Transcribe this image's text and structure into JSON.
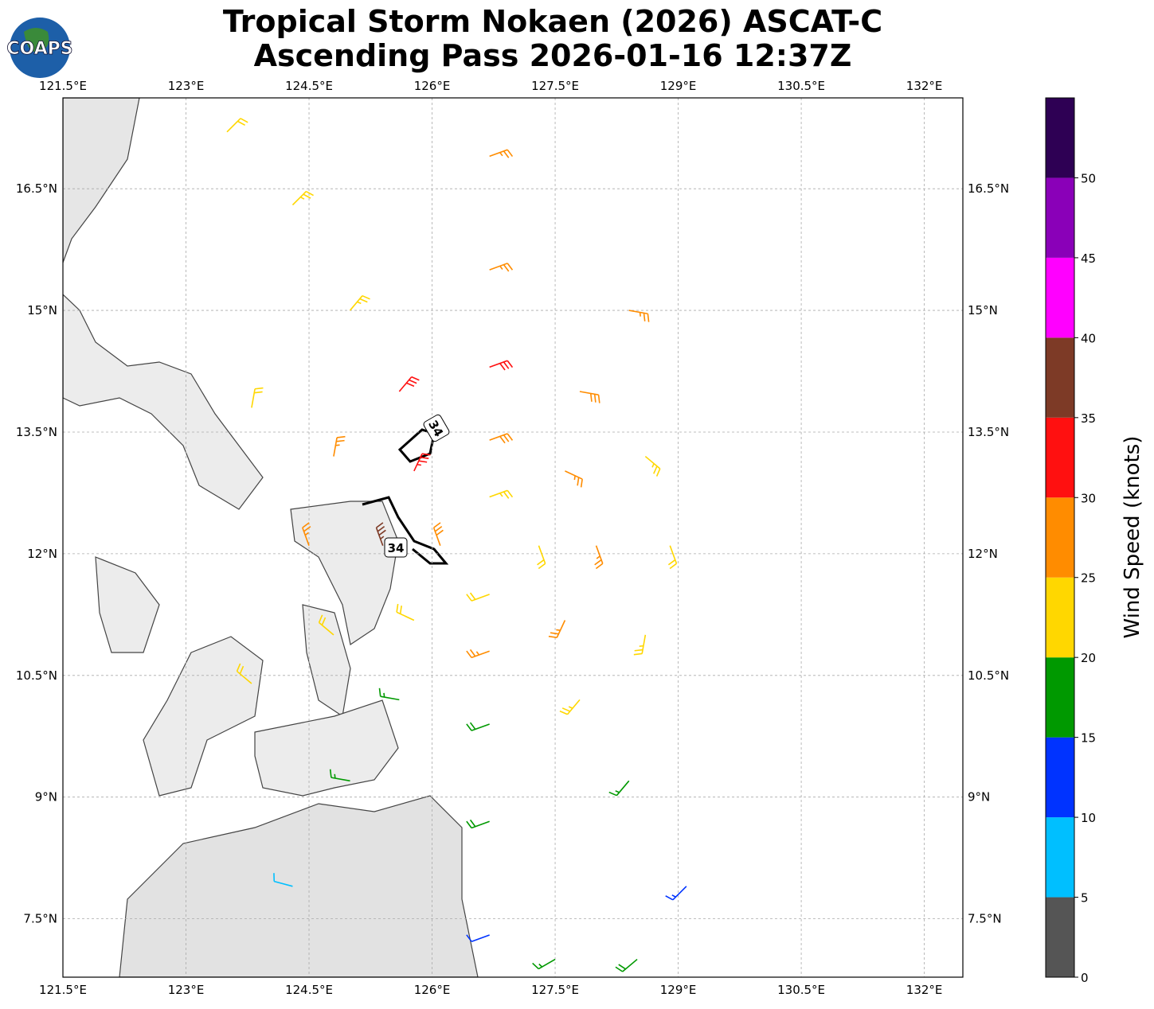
{
  "logo": "COAPS",
  "title": "Tropical Storm Nokaen (2026) ASCAT-C",
  "subtitle": "Ascending Pass 2026-01-16 12:37Z",
  "map": {
    "xlim": [
      121.5,
      132.47
    ],
    "ylim": [
      6.78,
      17.62
    ],
    "xticks": [
      {
        "value": 121.5,
        "label": "121.5°E"
      },
      {
        "value": 123,
        "label": "123°E"
      },
      {
        "value": 124.5,
        "label": "124.5°E"
      },
      {
        "value": 126,
        "label": "126°E"
      },
      {
        "value": 127.5,
        "label": "127.5°E"
      },
      {
        "value": 129,
        "label": "129°E"
      },
      {
        "value": 130.5,
        "label": "130.5°E"
      },
      {
        "value": 132,
        "label": "132°E"
      }
    ],
    "yticks": [
      {
        "value": 7.5,
        "label": "7.5°N"
      },
      {
        "value": 9,
        "label": "9°N"
      },
      {
        "value": 10.5,
        "label": "10.5°N"
      },
      {
        "value": 12,
        "label": "12°N"
      },
      {
        "value": 13.5,
        "label": "13.5°N"
      },
      {
        "value": 15,
        "label": "15°N"
      },
      {
        "value": 16.5,
        "label": "16.5°N"
      }
    ],
    "grid": true,
    "contour_labels": [
      34,
      34
    ],
    "barbs": {
      "lon": [
        127.3,
        126.7,
        126.1,
        126.7,
        128.0,
        127.62,
        126.7,
        125.78,
        125.4,
        125.78,
        126.7,
        127.62,
        128.9,
        128.6,
        127.8,
        126.7,
        125.6,
        124.8,
        124.5,
        124.8,
        125.6,
        126.7,
        127.8,
        128.6,
        128.4,
        126.7,
        125.0,
        123.8,
        123.8,
        125.0,
        126.7,
        128.4,
        126.7,
        124.3,
        124.3,
        126.7,
        129.1,
        123.5,
        127.5,
        128.5
      ],
      "lat": [
        12.1,
        12.7,
        12.1,
        11.5,
        12.1,
        13.02,
        13.4,
        13.02,
        12.1,
        11.18,
        10.8,
        11.18,
        12.1,
        13.2,
        14.0,
        14.3,
        14.0,
        13.2,
        12.1,
        11.0,
        10.2,
        9.9,
        10.2,
        11.0,
        15.0,
        15.5,
        15.0,
        13.8,
        10.4,
        9.2,
        8.7,
        9.2,
        16.9,
        16.3,
        7.9,
        7.3,
        7.9,
        17.2,
        7.0,
        7.0
      ],
      "speed": [
        22,
        24,
        28,
        20,
        27,
        26,
        29,
        33,
        36,
        22,
        26,
        25,
        22,
        24,
        28,
        30,
        32,
        27,
        26,
        22,
        17,
        18,
        23,
        24,
        26,
        27,
        24,
        20,
        21,
        16,
        18,
        17,
        25,
        24,
        9,
        12,
        14,
        22,
        17,
        18
      ],
      "direction": [
        160,
        70,
        340,
        250,
        160,
        115,
        70,
        25,
        340,
        295,
        250,
        205,
        160,
        130,
        100,
        70,
        40,
        10,
        340,
        310,
        280,
        250,
        220,
        190,
        100,
        70,
        40,
        10,
        310,
        280,
        250,
        220,
        70,
        45,
        285,
        250,
        225,
        45,
        240,
        230
      ]
    }
  },
  "colorbar": {
    "label": "Wind Speed (knots)",
    "lim": [
      0,
      55
    ],
    "bounds": [
      0,
      5,
      10,
      15,
      20,
      25,
      30,
      35,
      40,
      45,
      50,
      55
    ],
    "colors": [
      "#555555",
      "#00bfff",
      "#0033ff",
      "#009900",
      "#ffd700",
      "#ff8c00",
      "#ff1010",
      "#7d3a26",
      "#ff00ff",
      "#8a00b8",
      "#2e0054"
    ],
    "ticks": [
      0,
      5,
      10,
      15,
      20,
      25,
      30,
      35,
      40,
      45,
      50
    ]
  }
}
